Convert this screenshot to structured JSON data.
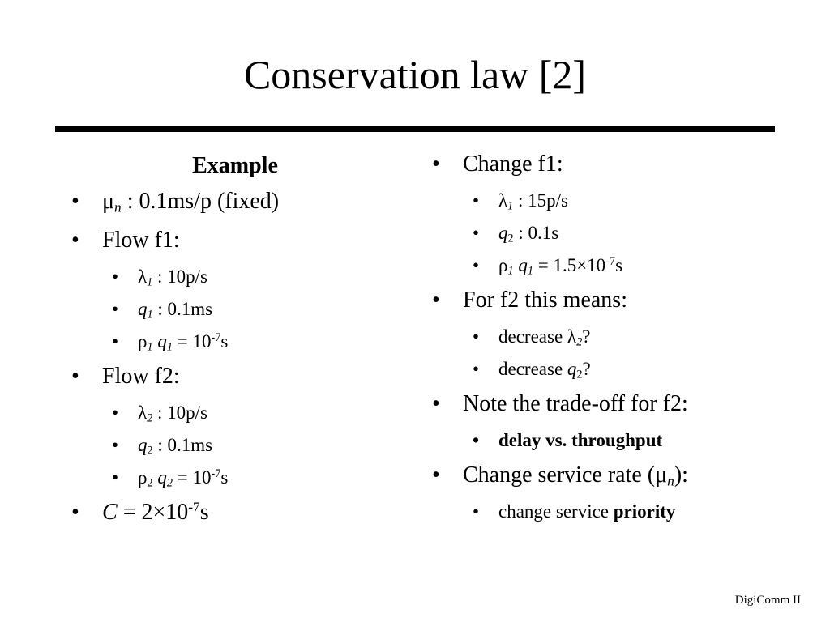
{
  "title": "Conservation law [2]",
  "left": {
    "heading": "Example",
    "mu_sym": "μ",
    "mu_sub": "n",
    "mu_text": " : 0.1ms/p (fixed)",
    "flow1": {
      "label": "Flow f1:",
      "lambda_sym": "λ",
      "lambda_sub": "1",
      "lambda_text": " : 10p/s",
      "q_sym": "q",
      "q_sub": "1",
      "q_text": " : 0.1ms",
      "rho_sym": "ρ",
      "rho_sub": "1",
      "rho_q": "q",
      "rho_q_sub": "1",
      "rho_eq": " = 10",
      "rho_exp": "-7",
      "rho_unit": "s"
    },
    "flow2": {
      "label": "Flow f2:",
      "lambda_sym": "λ",
      "lambda_sub": "2",
      "lambda_text": " : 10p/s",
      "q_sym": "q",
      "q_sub": "2",
      "q_text": " : 0.1ms",
      "rho_sym": "ρ",
      "rho_sub": "2",
      "rho_q": "q",
      "rho_q_sub": "2",
      "rho_eq": " = 10",
      "rho_exp": "-7",
      "rho_unit": "s"
    },
    "c_sym": "C",
    "c_eq": " = 2×10",
    "c_exp": "-7",
    "c_unit": "s"
  },
  "right": {
    "change_f1": {
      "label": "Change f1:",
      "lambda_sym": "λ",
      "lambda_sub": "1",
      "lambda_text": " : 15p/s",
      "q_sym": "q",
      "q_sub": "2",
      "q_text": " : 0.1s",
      "rho_sym": "ρ",
      "rho_sub": "1",
      "rho_q": "q",
      "rho_q_sub": "1",
      "rho_eq": " = 1.5×10",
      "rho_exp": "-7",
      "rho_unit": "s"
    },
    "means": {
      "label": "For f2 this means:",
      "dec1_text": "decrease ",
      "dec1_sym": "λ",
      "dec1_sub": "2",
      "dec1_q": "?",
      "dec2_text": "decrease ",
      "dec2_sym": "q",
      "dec2_sub": "2",
      "dec2_q": "?"
    },
    "tradeoff": {
      "label": "Note the trade-off for f2:",
      "item": "delay vs. throughput"
    },
    "service": {
      "label_pre": "Change service rate (",
      "mu_sym": "μ",
      "mu_sub": "n",
      "label_post": "):",
      "item_text": "change service ",
      "item_bold": "priority"
    }
  },
  "footer": "DigiComm II"
}
